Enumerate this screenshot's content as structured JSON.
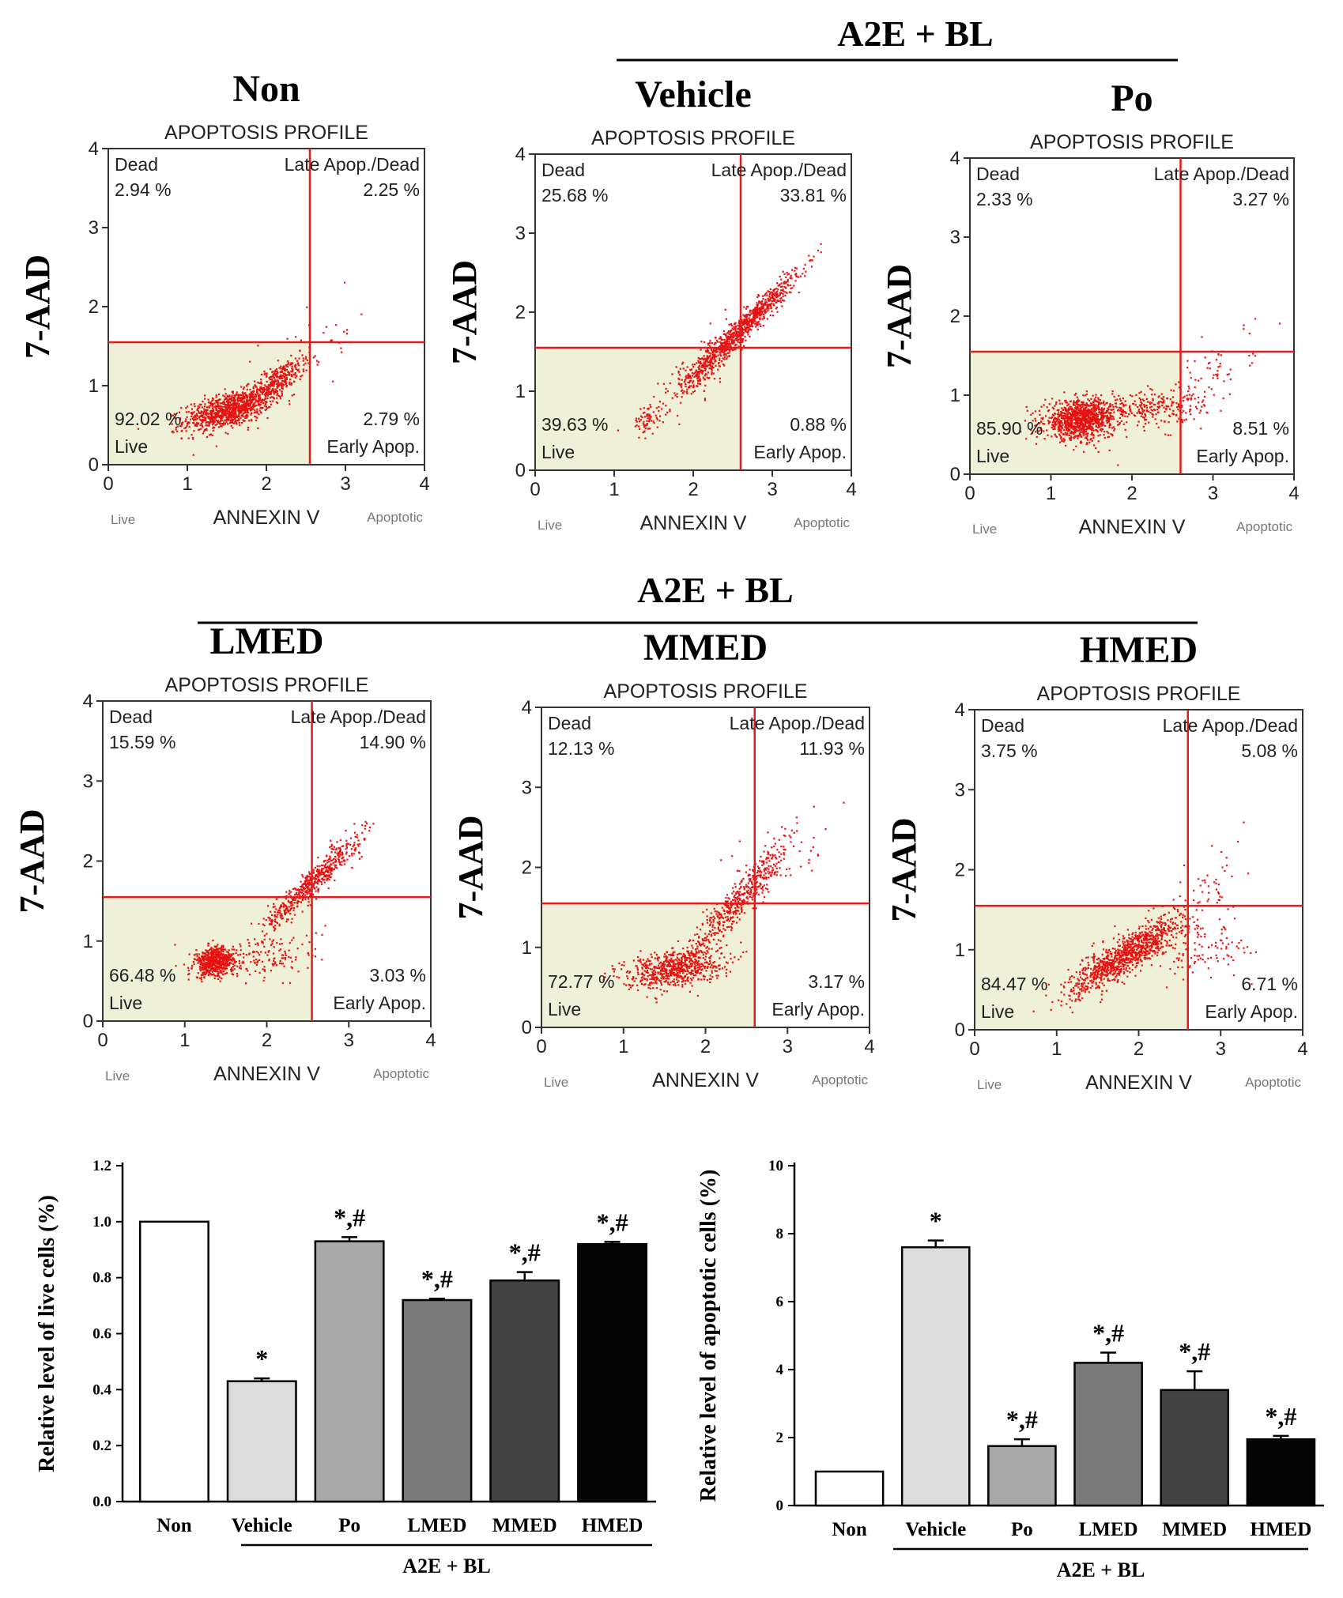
{
  "figure": {
    "group_label_top": "A2E + BL",
    "group_label_mid": "A2E + BL"
  },
  "flow_panels": [
    {
      "name": "Non",
      "title": "APOPTOSIS PROFILE",
      "xlabel": "ANNEXIN V",
      "ylabel": "7-AAD",
      "live_hint": "Live",
      "apoptotic_hint": "Apoptotic",
      "quadrants": {
        "dead": "2.94 %",
        "late": "2.25 %",
        "live": "92.02 %",
        "early": "2.79 %"
      },
      "quadrant_labels": {
        "dead": "Dead",
        "late": "Late Apop./Dead",
        "live": "Live",
        "early": "Early Apop."
      },
      "gate": {
        "x": 2.55,
        "y": 1.55
      },
      "clusters": [
        {
          "cx": 1.5,
          "cy": 0.7,
          "sx": 0.28,
          "sy": 0.13,
          "n": 900,
          "corr": 0.55
        },
        {
          "cx": 2.1,
          "cy": 1.05,
          "sx": 0.22,
          "sy": 0.18,
          "n": 350,
          "corr": 0.85
        },
        {
          "cx": 2.6,
          "cy": 1.5,
          "sx": 0.35,
          "sy": 0.3,
          "n": 40,
          "corr": 0.6
        }
      ]
    },
    {
      "name": "Vehicle",
      "title": "APOPTOSIS PROFILE",
      "xlabel": "ANNEXIN V",
      "ylabel": "7-AAD",
      "live_hint": "Live",
      "apoptotic_hint": "Apoptotic",
      "quadrants": {
        "dead": "25.68 %",
        "late": "33.81 %",
        "live": "39.63 %",
        "early": "0.88 %"
      },
      "quadrant_labels": {
        "dead": "Dead",
        "late": "Late Apop./Dead",
        "live": "Live",
        "early": "Early Apop."
      },
      "gate": {
        "x": 2.6,
        "y": 1.55
      },
      "clusters": [
        {
          "cx": 2.6,
          "cy": 1.8,
          "sx": 0.35,
          "sy": 0.35,
          "n": 900,
          "corr": 0.97
        },
        {
          "cx": 1.4,
          "cy": 0.65,
          "sx": 0.08,
          "sy": 0.1,
          "n": 60,
          "corr": 0.2
        },
        {
          "cx": 2.0,
          "cy": 1.2,
          "sx": 0.3,
          "sy": 0.3,
          "n": 150,
          "corr": 0.8
        }
      ]
    },
    {
      "name": "Po",
      "title": "APOPTOSIS PROFILE",
      "xlabel": "ANNEXIN V",
      "ylabel": "7-AAD",
      "live_hint": "Live",
      "apoptotic_hint": "Apoptotic",
      "quadrants": {
        "dead": "2.33 %",
        "late": "3.27 %",
        "live": "85.90 %",
        "early": "8.51 %"
      },
      "quadrant_labels": {
        "dead": "Dead",
        "late": "Late Apop./Dead",
        "live": "Live",
        "early": "Early Apop."
      },
      "gate": {
        "x": 2.6,
        "y": 1.55
      },
      "clusters": [
        {
          "cx": 1.35,
          "cy": 0.7,
          "sx": 0.22,
          "sy": 0.12,
          "n": 1000,
          "corr": 0.1
        },
        {
          "cx": 2.2,
          "cy": 0.85,
          "sx": 0.35,
          "sy": 0.12,
          "n": 250,
          "corr": 0.3
        },
        {
          "cx": 2.9,
          "cy": 1.2,
          "sx": 0.3,
          "sy": 0.3,
          "n": 80,
          "corr": 0.7
        }
      ]
    },
    {
      "name": "LMED",
      "title": "APOPTOSIS PROFILE",
      "xlabel": "ANNEXIN V",
      "ylabel": "7-AAD",
      "live_hint": "Live",
      "apoptotic_hint": "Apoptotic",
      "quadrants": {
        "dead": "15.59 %",
        "late": "14.90 %",
        "live": "66.48 %",
        "early": "3.03 %"
      },
      "quadrant_labels": {
        "dead": "Dead",
        "late": "Late Apop./Dead",
        "live": "Live",
        "early": "Early Apop."
      },
      "gate": {
        "x": 2.55,
        "y": 1.55
      },
      "clusters": [
        {
          "cx": 1.35,
          "cy": 0.75,
          "sx": 0.12,
          "sy": 0.09,
          "n": 550,
          "corr": 0.2
        },
        {
          "cx": 2.55,
          "cy": 1.75,
          "sx": 0.3,
          "sy": 0.3,
          "n": 550,
          "corr": 0.95
        },
        {
          "cx": 2.0,
          "cy": 0.8,
          "sx": 0.35,
          "sy": 0.15,
          "n": 150,
          "corr": 0.3
        }
      ]
    },
    {
      "name": "MMED",
      "title": "APOPTOSIS PROFILE",
      "xlabel": "ANNEXIN V",
      "ylabel": "7-AAD",
      "live_hint": "Live",
      "apoptotic_hint": "Apoptotic",
      "quadrants": {
        "dead": "12.13 %",
        "late": "11.93 %",
        "live": "72.77 %",
        "early": "3.17 %"
      },
      "quadrant_labels": {
        "dead": "Dead",
        "late": "Late Apop./Dead",
        "live": "Live",
        "early": "Early Apop."
      },
      "gate": {
        "x": 2.6,
        "y": 1.55
      },
      "clusters": [
        {
          "cx": 1.6,
          "cy": 0.75,
          "sx": 0.3,
          "sy": 0.12,
          "n": 650,
          "corr": 0.35
        },
        {
          "cx": 2.4,
          "cy": 1.6,
          "sx": 0.3,
          "sy": 0.35,
          "n": 450,
          "corr": 0.93
        },
        {
          "cx": 2.9,
          "cy": 2.1,
          "sx": 0.3,
          "sy": 0.3,
          "n": 60,
          "corr": 0.6
        }
      ]
    },
    {
      "name": "HMED",
      "title": "APOPTOSIS PROFILE",
      "xlabel": "ANNEXIN V",
      "ylabel": "7-AAD",
      "live_hint": "Live",
      "apoptotic_hint": "Apoptotic",
      "quadrants": {
        "dead": "3.75 %",
        "late": "5.08 %",
        "live": "84.47 %",
        "early": "6.71 %"
      },
      "quadrant_labels": {
        "dead": "Dead",
        "late": "Late Apop./Dead",
        "live": "Live",
        "early": "Early Apop."
      },
      "gate": {
        "x": 2.6,
        "y": 1.55
      },
      "clusters": [
        {
          "cx": 1.85,
          "cy": 0.95,
          "sx": 0.35,
          "sy": 0.25,
          "n": 1000,
          "corr": 0.88
        },
        {
          "cx": 2.8,
          "cy": 1.0,
          "sx": 0.3,
          "sy": 0.2,
          "n": 100,
          "corr": 0.4
        },
        {
          "cx": 2.8,
          "cy": 1.8,
          "sx": 0.3,
          "sy": 0.3,
          "n": 40,
          "corr": 0.5
        }
      ]
    }
  ],
  "chart_data": [
    {
      "type": "bar",
      "ylabel": "Relative level of live cells (%)",
      "xlabel": "A2E + BL",
      "categories": [
        "Non",
        "Vehicle",
        "Po",
        "LMED",
        "MMED",
        "HMED"
      ],
      "values": [
        1.0,
        0.43,
        0.93,
        0.72,
        0.79,
        0.92
      ],
      "errors": [
        0.0,
        0.01,
        0.015,
        0.005,
        0.03,
        0.008
      ],
      "annotations": [
        "",
        "*",
        "*,#",
        "*,#",
        "*,#",
        "*,#"
      ],
      "fills": [
        "#ffffff",
        "#dcdcdc",
        "#a8a8a8",
        "#7a7a7a",
        "#424242",
        "#050505"
      ],
      "ylim": [
        0.0,
        1.2
      ],
      "yticks": [
        "0.0",
        "0.2",
        "0.4",
        "0.6",
        "0.8",
        "1.0",
        "1.2"
      ]
    },
    {
      "type": "bar",
      "ylabel": "Relative level of apoptotic cells (%)",
      "xlabel": "A2E + BL",
      "categories": [
        "Non",
        "Vehicle",
        "Po",
        "LMED",
        "MMED",
        "HMED"
      ],
      "values": [
        1.0,
        7.6,
        1.75,
        4.2,
        3.4,
        1.95
      ],
      "errors": [
        0.0,
        0.2,
        0.2,
        0.3,
        0.55,
        0.1
      ],
      "annotations": [
        "",
        "*",
        "*,#",
        "*,#",
        "*,#",
        "*,#"
      ],
      "fills": [
        "#ffffff",
        "#dcdcdc",
        "#a8a8a8",
        "#7a7a7a",
        "#424242",
        "#050505"
      ],
      "ylim": [
        0,
        10
      ],
      "yticks": [
        "0",
        "2",
        "4",
        "6",
        "8",
        "10"
      ]
    }
  ]
}
